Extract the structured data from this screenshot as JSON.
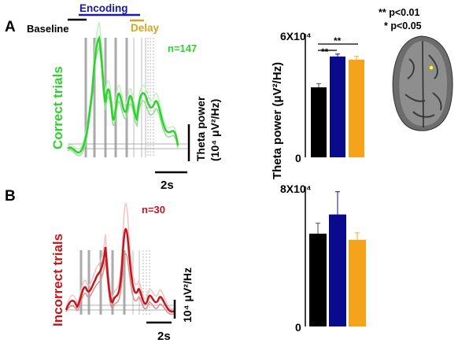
{
  "panel_labels": {
    "a": "A",
    "b": "B"
  },
  "phases": {
    "baseline": "Baseline",
    "encoding": "Encoding",
    "delay": "Delay"
  },
  "significance": {
    "double": "** p<0.01",
    "single": "* p<0.05",
    "marks": [
      "**",
      "**"
    ]
  },
  "colors": {
    "correct": "#2fd12f",
    "incorrect": "#c0181e",
    "black": "#000000",
    "blue": "#0a0a8c",
    "orange": "#f5a31a",
    "delay_label": "#d8a320",
    "encoding_label": "#1a1aa6"
  },
  "panel_a": {
    "side_label": "Correct trials",
    "n_label": "n=147",
    "scale_label_line1": "Theta power",
    "scale_label_line2": "(10⁴ μV²/Hz)",
    "time_scale": "2s"
  },
  "panel_b": {
    "side_label": "Incorrect trials",
    "n_label": "n=30",
    "scale_label": "10⁴ μV²/Hz",
    "time_scale": "2s"
  },
  "chart_data": [
    {
      "type": "bar",
      "ylabel": "Theta power (μV²/Hz)",
      "ymax_label": "6X10⁴",
      "ymin_label": "0",
      "ylim": [
        0,
        60000
      ],
      "categories": [
        "Baseline",
        "Encoding",
        "Delay"
      ],
      "values": [
        34000,
        49000,
        47500
      ],
      "errors": [
        1800,
        1200,
        1500
      ],
      "colors": [
        "#000000",
        "#0a0a8c",
        "#f5a31a"
      ]
    },
    {
      "type": "bar",
      "ymax_label": "8X10⁴",
      "ymin_label": "0",
      "ylim": [
        0,
        80000
      ],
      "categories": [
        "Baseline",
        "Encoding",
        "Delay"
      ],
      "values": [
        53000,
        64000,
        49500
      ],
      "errors": [
        6000,
        13000,
        4000
      ],
      "colors": [
        "#000000",
        "#0a0a8c",
        "#f5a31a"
      ]
    }
  ]
}
